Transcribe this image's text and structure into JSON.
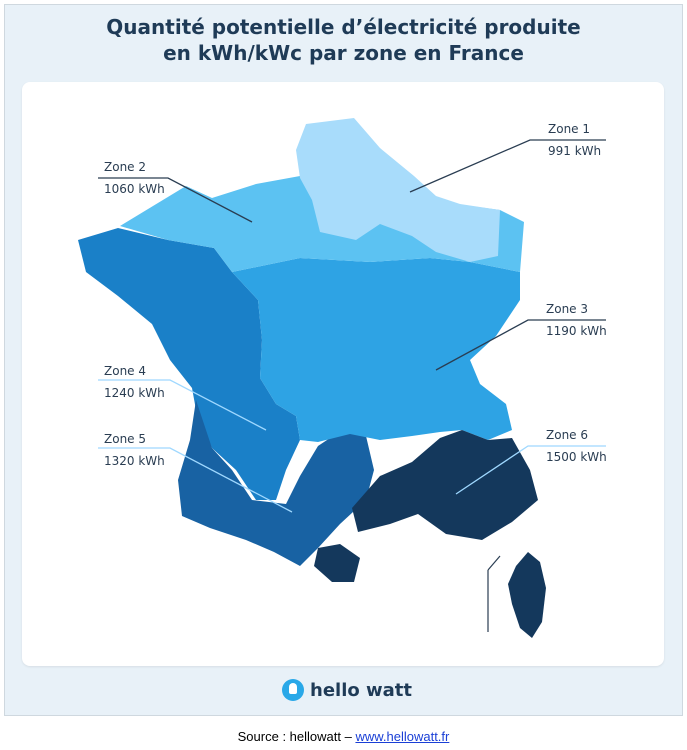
{
  "title_line1": "Quantité potentielle d’électricité produite",
  "title_line2": "en kWh/kWc par zone en France",
  "zones": [
    {
      "id": 1,
      "name": "Zone 1",
      "value": "991 kWh",
      "color": "#a8dcfb"
    },
    {
      "id": 2,
      "name": "Zone 2",
      "value": "1060 kWh",
      "color": "#5cc2f2"
    },
    {
      "id": 3,
      "name": "Zone 3",
      "value": "1190 kWh",
      "color": "#2ea3e4"
    },
    {
      "id": 4,
      "name": "Zone 4",
      "value": "1240 kWh",
      "color": "#1a80c8"
    },
    {
      "id": 5,
      "name": "Zone 5",
      "value": "1320 kWh",
      "color": "#1862a3"
    },
    {
      "id": 6,
      "name": "Zone 6",
      "value": "1500 kWh",
      "color": "#14385c"
    }
  ],
  "brand": {
    "name": "hello watt",
    "icon": "lightbulb-icon",
    "color": "#29a8e8"
  },
  "source": {
    "prefix": "Source : hellowatt – ",
    "link": "www.hellowatt.fr"
  }
}
